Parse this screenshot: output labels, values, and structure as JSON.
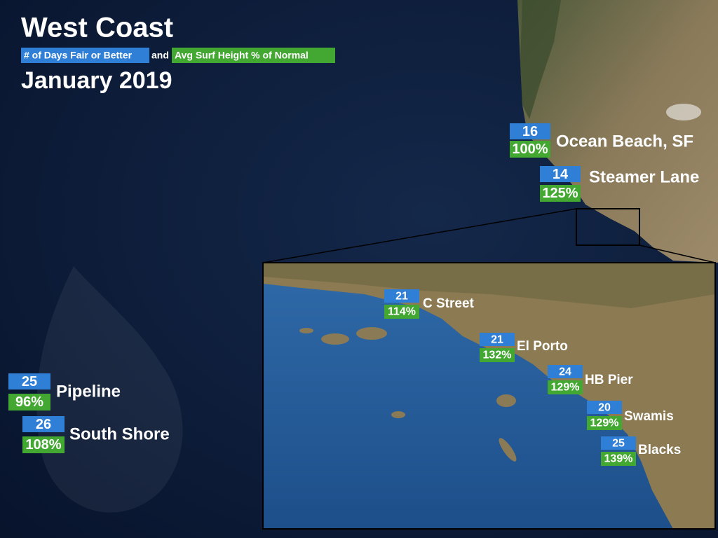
{
  "header": {
    "title": "West Coast",
    "legend_days": "# of Days Fair or Better",
    "legend_and": "and",
    "legend_height": "Avg Surf Height % of Normal",
    "subtitle": "January 2019"
  },
  "spots": [
    {
      "name": "Ocean Beach, SF",
      "days": 16,
      "height": "100%"
    },
    {
      "name": "Steamer Lane",
      "days": 14,
      "height": "125%"
    },
    {
      "name": "Pipeline",
      "days": 25,
      "height": "96%"
    },
    {
      "name": "South Shore",
      "days": 26,
      "height": "108%"
    }
  ],
  "inset_spots": [
    {
      "name": "C Street",
      "days": 21,
      "height": "114%"
    },
    {
      "name": "El Porto",
      "days": 21,
      "height": "132%"
    },
    {
      "name": "HB Pier",
      "days": 24,
      "height": "129%"
    },
    {
      "name": "Swamis",
      "days": 20,
      "height": "129%"
    },
    {
      "name": "Blacks",
      "days": 25,
      "height": "139%"
    }
  ]
}
